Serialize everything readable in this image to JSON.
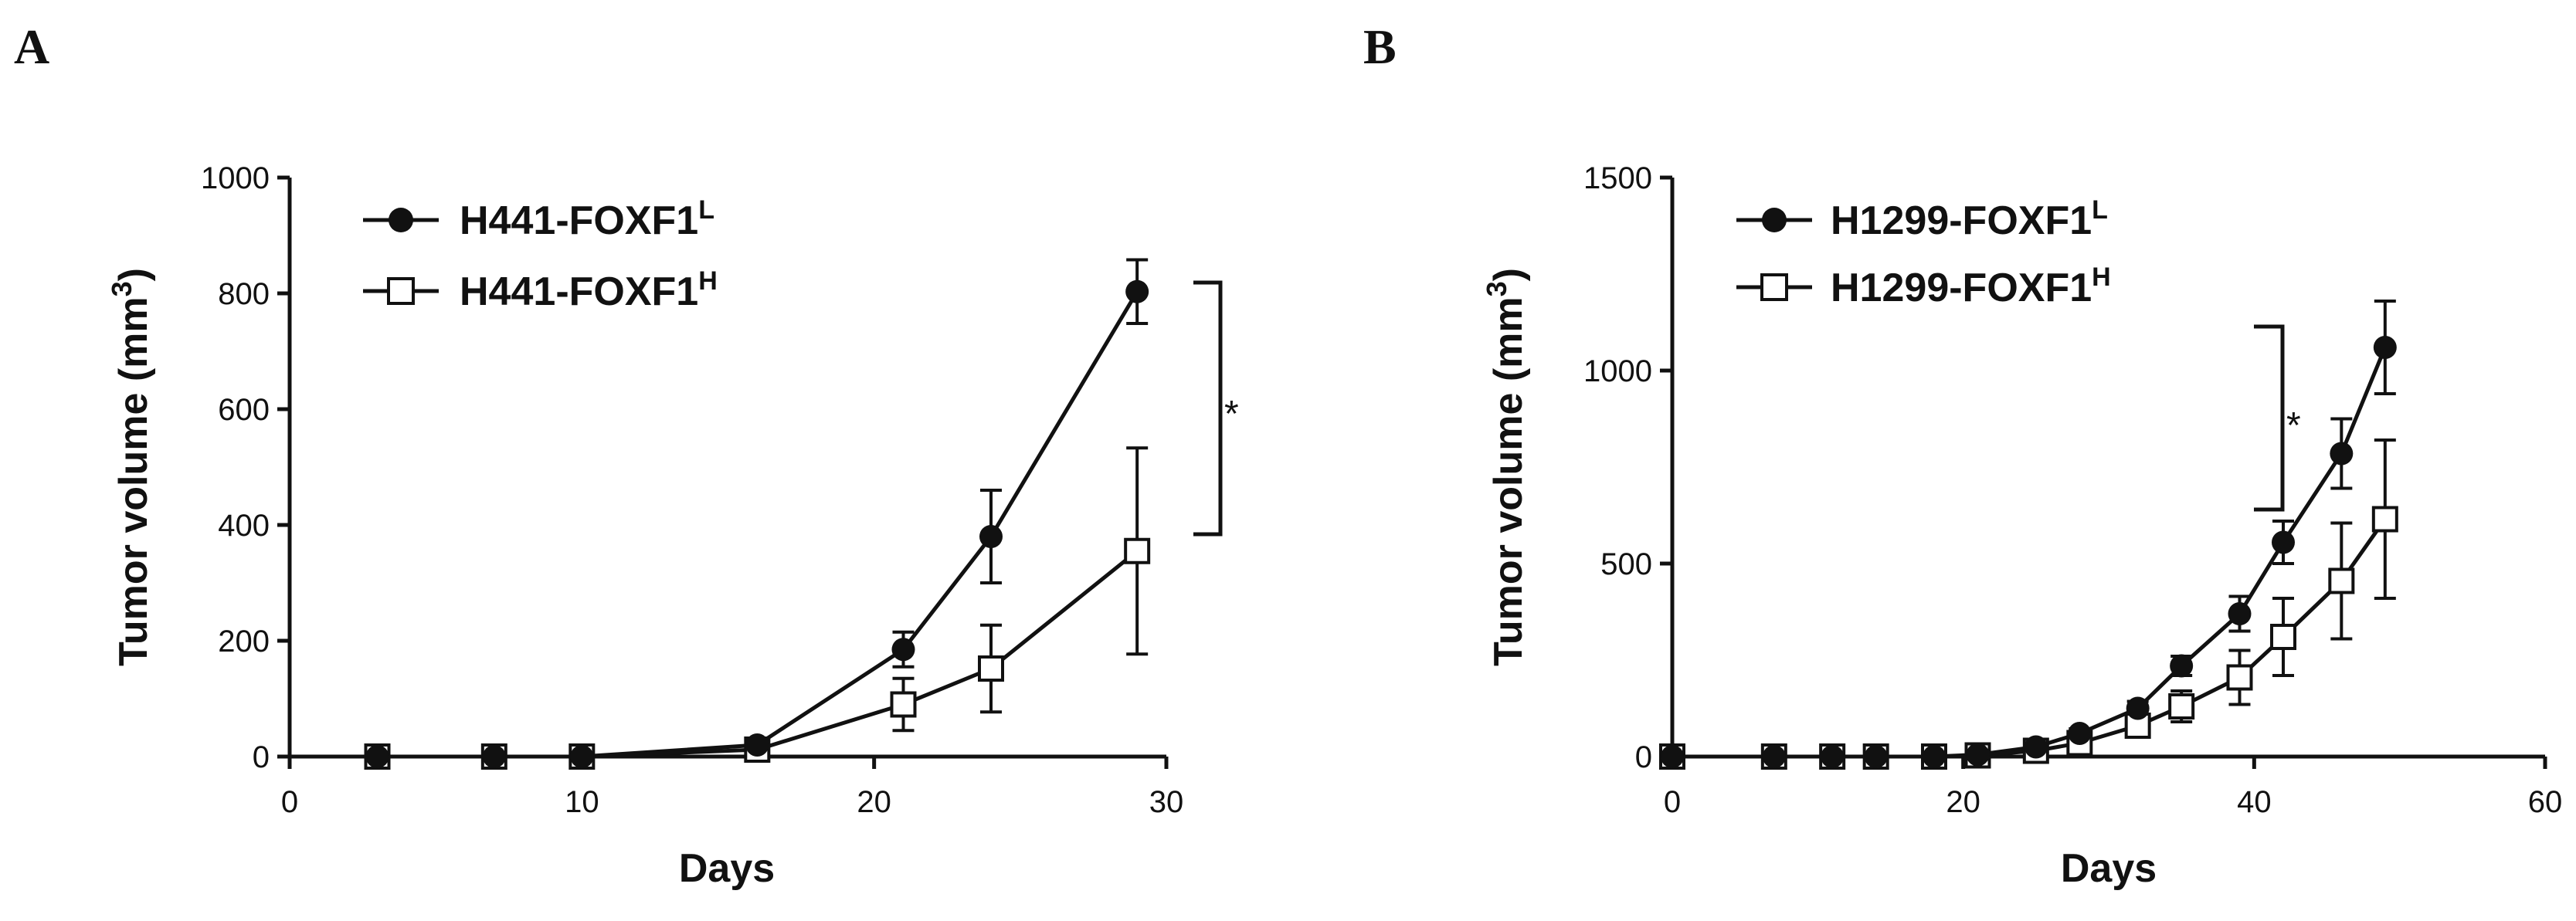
{
  "chart_data": [
    {
      "panel": "A",
      "type": "line",
      "xlabel": "Days",
      "ylabel": "Tumor volume (mm",
      "ylabel_sup": "3",
      "ylabel_end": ")",
      "xlim": [
        0,
        30
      ],
      "ylim": [
        0,
        1000
      ],
      "xticks": [
        0,
        10,
        20,
        30
      ],
      "yticks": [
        0,
        200,
        400,
        600,
        800,
        1000
      ],
      "legend_position": "top-left",
      "significance": "*",
      "series": [
        {
          "name": "H441-FOXF1",
          "name_sup": "L",
          "marker": "filled-circle",
          "x": [
            3,
            7,
            10,
            16,
            21,
            24,
            29
          ],
          "y": [
            0,
            0,
            0,
            20,
            185,
            380,
            803
          ],
          "err": [
            0,
            0,
            0,
            6,
            30,
            80,
            55
          ]
        },
        {
          "name": "H441-FOXF1",
          "name_sup": "H",
          "marker": "open-square",
          "x": [
            3,
            7,
            10,
            16,
            21,
            24,
            29
          ],
          "y": [
            0,
            0,
            0,
            12,
            90,
            152,
            355
          ],
          "err": [
            0,
            0,
            0,
            5,
            45,
            75,
            178
          ]
        }
      ]
    },
    {
      "panel": "B",
      "type": "line",
      "xlabel": "Days",
      "ylabel": "Tumor volume (mm",
      "ylabel_sup": "3",
      "ylabel_end": ")",
      "xlim": [
        0,
        60
      ],
      "ylim": [
        0,
        1500
      ],
      "xticks": [
        0,
        20,
        40,
        60
      ],
      "yticks": [
        0,
        500,
        1000,
        1500
      ],
      "legend_position": "top-left",
      "significance": "*",
      "series": [
        {
          "name": "H1299-FOXF1",
          "name_sup": "L",
          "marker": "filled-circle",
          "x": [
            0,
            7,
            11,
            14,
            18,
            21,
            25,
            28,
            32,
            35,
            39,
            42,
            46,
            49
          ],
          "y": [
            0,
            0,
            0,
            0,
            0,
            5,
            25,
            60,
            125,
            235,
            370,
            555,
            785,
            1060
          ],
          "err": [
            0,
            0,
            0,
            0,
            0,
            3,
            8,
            12,
            18,
            25,
            45,
            55,
            90,
            120
          ]
        },
        {
          "name": "H1299-FOXF1",
          "name_sup": "H",
          "marker": "open-square",
          "x": [
            0,
            7,
            11,
            14,
            18,
            21,
            25,
            28,
            32,
            35,
            39,
            42,
            46,
            49
          ],
          "y": [
            0,
            0,
            0,
            0,
            0,
            3,
            15,
            35,
            80,
            130,
            205,
            310,
            455,
            615
          ],
          "err": [
            0,
            0,
            0,
            0,
            0,
            2,
            6,
            15,
            25,
            40,
            70,
            100,
            150,
            205
          ]
        }
      ]
    }
  ]
}
